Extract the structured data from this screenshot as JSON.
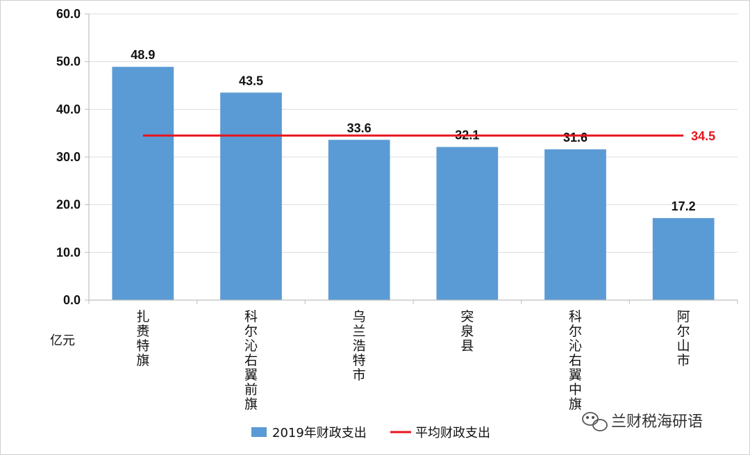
{
  "chart_data": {
    "type": "bar",
    "title": "",
    "unit_label": "亿元",
    "ylim": [
      0,
      60
    ],
    "yticks": [
      "0.0",
      "10.0",
      "20.0",
      "30.0",
      "40.0",
      "50.0",
      "60.0"
    ],
    "grid": true,
    "categories": [
      "扎赉特旗",
      "科尔沁右翼前旗",
      "乌兰浩特市",
      "突泉县",
      "科尔沁右翼中旗",
      "阿尔山市"
    ],
    "series": [
      {
        "name": "2019年财政支出",
        "type": "bar",
        "color": "#5b9bd5",
        "values": [
          48.9,
          43.5,
          33.6,
          32.1,
          31.6,
          17.2
        ],
        "labels": [
          "48.9",
          "43.5",
          "33.6",
          "32.1",
          "31.6",
          "17.2"
        ]
      },
      {
        "name": "平均财政支出",
        "type": "line",
        "color": "#e8141c",
        "value": 34.5,
        "label": "34.5"
      }
    ],
    "legend_position": "bottom"
  },
  "watermark": {
    "icon": "wechat-icon",
    "text": "兰财税海研语"
  }
}
